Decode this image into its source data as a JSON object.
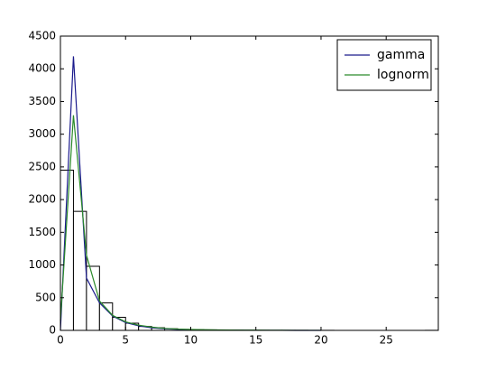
{
  "chart_data": {
    "type": "histogram",
    "bins": [
      0,
      1,
      2,
      3,
      4,
      5,
      6,
      7,
      8,
      9,
      10,
      11,
      12,
      13,
      14,
      15,
      16,
      17,
      18,
      19,
      20,
      21,
      22,
      23,
      24,
      25,
      26,
      27,
      28,
      29
    ],
    "values": [
      2450,
      1820,
      980,
      420,
      200,
      110,
      60,
      40,
      25,
      15,
      10,
      8,
      5,
      3,
      2,
      2,
      1,
      1,
      1,
      0,
      1,
      0,
      0,
      0,
      0,
      0,
      0,
      0,
      1
    ],
    "bar_color": "#ffffff",
    "edge_color": "#000000",
    "series": [
      {
        "name": "gamma",
        "color": "#1a1a8c",
        "x": [
          0,
          1,
          2,
          3,
          4,
          5,
          6,
          7,
          8,
          9,
          10,
          11,
          12,
          13,
          14,
          15,
          16,
          17,
          18,
          19,
          20
        ],
        "values": [
          0,
          4190,
          800,
          420,
          220,
          120,
          70,
          40,
          25,
          15,
          10,
          6,
          4,
          3,
          2,
          1,
          1,
          1,
          0,
          0,
          0
        ]
      },
      {
        "name": "lognorm",
        "color": "#2a8a2a",
        "x": [
          0,
          1,
          2,
          3,
          4,
          5,
          6,
          7,
          8,
          9,
          10,
          11,
          12,
          13,
          14,
          15,
          16,
          17,
          18,
          19,
          20
        ],
        "values": [
          150,
          3290,
          1150,
          450,
          230,
          130,
          80,
          50,
          30,
          20,
          15,
          10,
          8,
          5,
          4,
          3,
          2,
          2,
          1,
          1,
          1
        ]
      }
    ],
    "xlim": [
      0,
      29
    ],
    "ylim": [
      0,
      4500
    ],
    "xticks": [
      0,
      5,
      10,
      15,
      20,
      25
    ],
    "yticks": [
      0,
      500,
      1000,
      1500,
      2000,
      2500,
      3000,
      3500,
      4000,
      4500
    ],
    "legend": "upper right"
  }
}
